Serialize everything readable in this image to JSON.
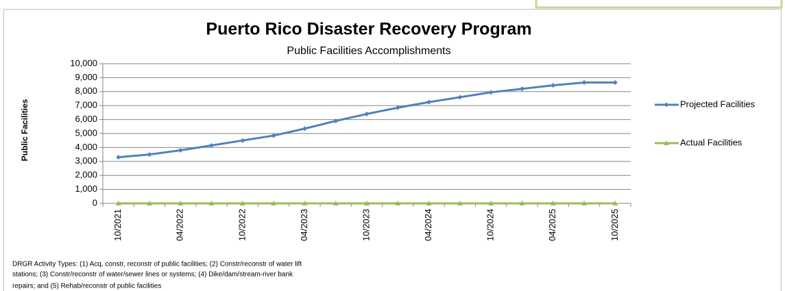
{
  "chart_data": {
    "type": "line",
    "title": "Puerto Rico Disaster Recovery Program",
    "subtitle": "Public Facilities Accomplishments",
    "y_label": "Public Facilities",
    "categories": [
      "10/2021",
      null,
      "04/2022",
      null,
      "10/2022",
      null,
      "04/2023",
      null,
      "10/2023",
      null,
      "04/2024",
      null,
      "10/2024",
      null,
      "04/2025",
      null,
      "10/2025"
    ],
    "series": [
      {
        "name": "Projected Facilities",
        "color": "#4f81bd",
        "marker": "diamond",
        "values": [
          3300,
          3500,
          3800,
          4150,
          4500,
          4850,
          5350,
          5900,
          6400,
          6850,
          7250,
          7600,
          7950,
          8200,
          8450,
          8650,
          8650
        ]
      },
      {
        "name": "Actual Facilities",
        "color": "#9bbb59",
        "marker": "triangle",
        "values": [
          0,
          0,
          0,
          0,
          0,
          0,
          0,
          0,
          0,
          0,
          0,
          0,
          0,
          0,
          0,
          0,
          0
        ]
      }
    ],
    "ylim": [
      0,
      10000
    ],
    "yticks": [
      0,
      {
        "value": 1000,
        "label": "1,000"
      },
      {
        "value": 2000,
        "label": "2,000"
      },
      {
        "value": 3000,
        "label": "3,000"
      },
      {
        "value": 4000,
        "label": "4,000"
      },
      {
        "value": 5000,
        "label": "5,000"
      },
      {
        "value": 6000,
        "label": "6,000"
      },
      {
        "value": 7000,
        "label": "7,000"
      },
      {
        "value": 8000,
        "label": "8,000"
      },
      {
        "value": 9000,
        "label": "9,000"
      },
      {
        "value": 10000,
        "label": "10,000"
      }
    ],
    "grid": true,
    "legend": "right",
    "note": [
      "DRGR Activity Types: (1) Acq, constr, reconstr of public facilities; (2) Constr/reconstr of water lift",
      "stations; (3) Constr/reconstr of water/sewer lines or systems; (4) Dike/dam/stream-river bank",
      "repairs; and (5) Rehab/reconstr of public facilities"
    ]
  }
}
